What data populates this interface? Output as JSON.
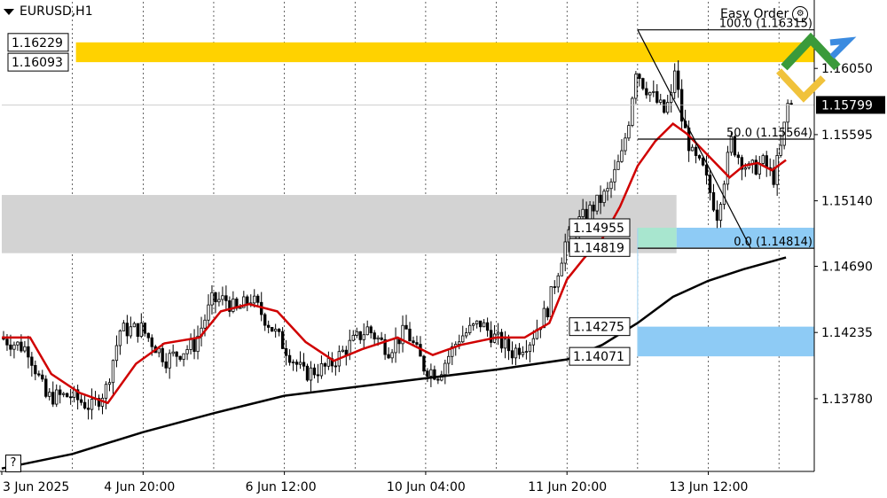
{
  "header": {
    "symbol_title": "EURUSD,H1",
    "easy_order_label": "Easy Order",
    "help_label": "?"
  },
  "colors": {
    "bull_candle": "#ffffff",
    "bear_candle": "#000000",
    "candle_outline": "#000000",
    "ma_fast": "#d00000",
    "ma_slow": "#000000",
    "supply_zone": "#ffd200",
    "neutral_zone": "#d3d3d3",
    "demand_zone": "#8ecbf5",
    "demand_zone_light": "#a8e6cf",
    "fib_line": "#000000",
    "grid": "#000000"
  },
  "chart_data": {
    "type": "candlestick",
    "title": "EURUSD,H1",
    "x_tick_labels": [
      "3 Jun 2025",
      "4 Jun 20:00",
      "6 Jun 12:00",
      "10 Jun 04:00",
      "11 Jun 20:00",
      "13 Jun 12:00"
    ],
    "y_tick_labels": [
      "1.16050",
      "1.15595",
      "1.15140",
      "1.14690",
      "1.14235",
      "1.13780"
    ],
    "ylim": [
      1.1328,
      1.16508
    ],
    "xlim": [
      0,
      230
    ],
    "current_price": "1.15799",
    "current_price_value": 1.15799,
    "zones": [
      {
        "name": "supply",
        "top": 1.16229,
        "bottom": 1.16093,
        "labels": [
          "1.16229",
          "1.16093"
        ]
      },
      {
        "name": "neutral",
        "top": 1.1518,
        "bottom": 1.1478,
        "labels": []
      },
      {
        "name": "demand_upper",
        "top": 1.14955,
        "bottom": 1.14819,
        "labels": [
          "1.14955",
          "1.14819"
        ]
      },
      {
        "name": "demand_lower",
        "top": 1.14275,
        "bottom": 1.14071,
        "labels": [
          "1.14275",
          "1.14071"
        ]
      }
    ],
    "fibonacci": {
      "start_bar": 180,
      "end_bar": 212,
      "levels": [
        {
          "label": "100.0 (1.16315)",
          "value": 1.16315
        },
        {
          "label": "50.0 (1.15564)",
          "value": 1.15564
        },
        {
          "label": "0.0 (1.14814)",
          "value": 1.14814
        }
      ]
    },
    "series": [
      {
        "name": "EURUSD H1",
        "kind": "candles"
      },
      {
        "name": "MA fast",
        "kind": "line"
      },
      {
        "name": "MA slow",
        "kind": "line"
      }
    ],
    "anchors": [
      [
        0,
        1.142
      ],
      [
        8,
        1.1412
      ],
      [
        13,
        1.1379
      ],
      [
        20,
        1.138
      ],
      [
        26,
        1.1372
      ],
      [
        30,
        1.1385
      ],
      [
        34,
        1.1425
      ],
      [
        40,
        1.1426
      ],
      [
        47,
        1.1405
      ],
      [
        55,
        1.1415
      ],
      [
        60,
        1.1445
      ],
      [
        64,
        1.1446
      ],
      [
        67,
        1.1438
      ],
      [
        71,
        1.1447
      ],
      [
        76,
        1.143
      ],
      [
        83,
        1.1405
      ],
      [
        86,
        1.1395
      ],
      [
        93,
        1.14
      ],
      [
        99,
        1.1415
      ],
      [
        104,
        1.1426
      ],
      [
        110,
        1.1412
      ],
      [
        115,
        1.1425
      ],
      [
        120,
        1.14
      ],
      [
        124,
        1.1395
      ],
      [
        130,
        1.142
      ],
      [
        136,
        1.143
      ],
      [
        140,
        1.142
      ],
      [
        145,
        1.141
      ],
      [
        150,
        1.1418
      ],
      [
        155,
        1.144
      ],
      [
        160,
        1.1485
      ],
      [
        164,
        1.15
      ],
      [
        168,
        1.151
      ],
      [
        172,
        1.152
      ],
      [
        176,
        1.1545
      ],
      [
        178,
        1.157
      ],
      [
        180,
        1.1605
      ],
      [
        182,
        1.1595
      ],
      [
        185,
        1.1585
      ],
      [
        188,
        1.1575
      ],
      [
        190,
        1.1585
      ],
      [
        191,
        1.1605
      ],
      [
        193,
        1.157
      ],
      [
        196,
        1.1545
      ],
      [
        199,
        1.1535
      ],
      [
        201,
        1.152
      ],
      [
        203,
        1.1505
      ],
      [
        205,
        1.153
      ],
      [
        207,
        1.1555
      ],
      [
        209,
        1.1545
      ],
      [
        212,
        1.1535
      ],
      [
        216,
        1.154
      ],
      [
        219,
        1.153
      ],
      [
        221,
        1.155
      ],
      [
        223,
        1.158
      ]
    ],
    "ma_fast_points": [
      [
        0,
        1.142
      ],
      [
        8,
        1.142
      ],
      [
        14,
        1.1395
      ],
      [
        22,
        1.1382
      ],
      [
        30,
        1.1375
      ],
      [
        38,
        1.1402
      ],
      [
        46,
        1.1416
      ],
      [
        56,
        1.142
      ],
      [
        62,
        1.1438
      ],
      [
        70,
        1.1443
      ],
      [
        78,
        1.1438
      ],
      [
        86,
        1.1417
      ],
      [
        94,
        1.1404
      ],
      [
        102,
        1.1412
      ],
      [
        112,
        1.142
      ],
      [
        122,
        1.1408
      ],
      [
        130,
        1.1415
      ],
      [
        140,
        1.142
      ],
      [
        148,
        1.142
      ],
      [
        155,
        1.143
      ],
      [
        160,
        1.146
      ],
      [
        165,
        1.1475
      ],
      [
        170,
        1.1488
      ],
      [
        175,
        1.151
      ],
      [
        180,
        1.1538
      ],
      [
        185,
        1.1555
      ],
      [
        190,
        1.1567
      ],
      [
        194,
        1.156
      ],
      [
        198,
        1.155
      ],
      [
        202,
        1.154
      ],
      [
        206,
        1.153
      ],
      [
        210,
        1.1538
      ],
      [
        214,
        1.154
      ],
      [
        218,
        1.1535
      ],
      [
        222,
        1.1542
      ]
    ],
    "ma_slow_points": [
      [
        0,
        1.133
      ],
      [
        20,
        1.134
      ],
      [
        40,
        1.1355
      ],
      [
        60,
        1.1368
      ],
      [
        80,
        1.138
      ],
      [
        100,
        1.1386
      ],
      [
        120,
        1.1392
      ],
      [
        140,
        1.1398
      ],
      [
        160,
        1.1405
      ],
      [
        170,
        1.1415
      ],
      [
        180,
        1.143
      ],
      [
        190,
        1.1448
      ],
      [
        200,
        1.1459
      ],
      [
        210,
        1.1467
      ],
      [
        222,
        1.1475
      ]
    ]
  }
}
